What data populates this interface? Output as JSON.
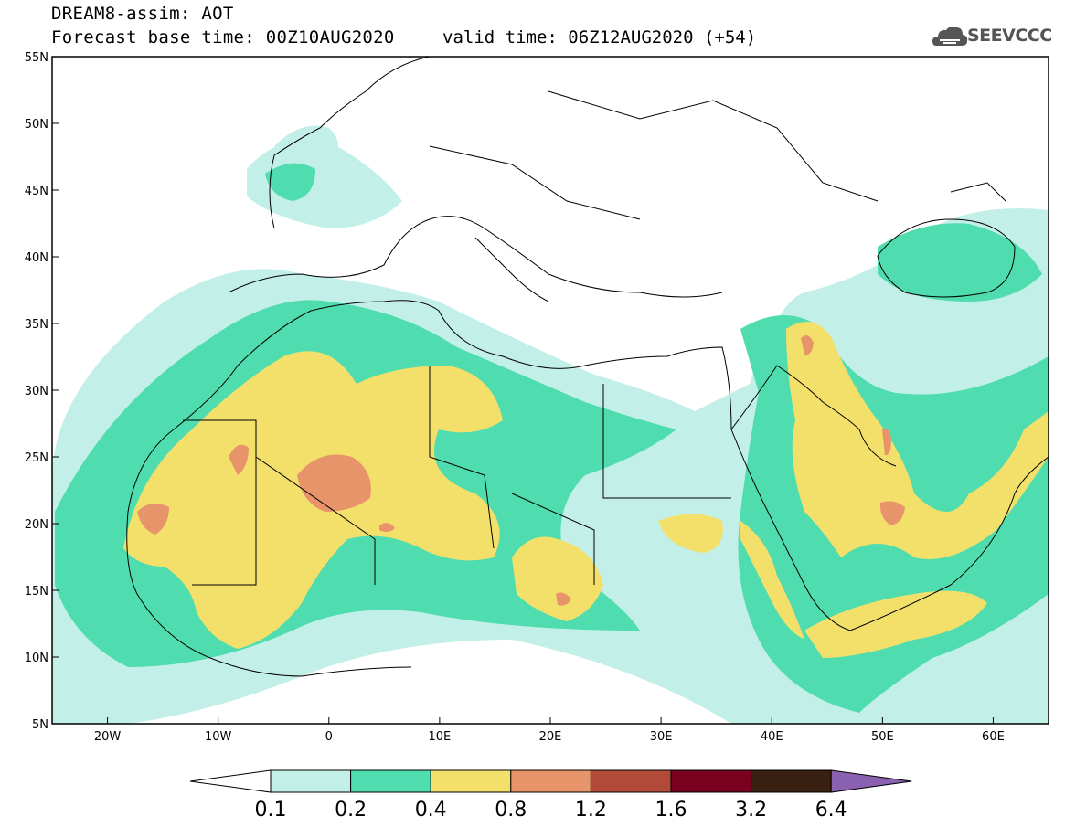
{
  "header": {
    "title": "DREAM8-assim: AOT",
    "base_time": "Forecast base time: 00Z10AUG2020",
    "valid_time": "valid time: 06Z12AUG2020 (+54)"
  },
  "logo": {
    "text": "SEEVCCC"
  },
  "map": {
    "lon_range": [
      -25,
      65
    ],
    "lat_range": [
      5,
      55
    ],
    "x_ticks": [
      "20W",
      "10W",
      "0",
      "10E",
      "20E",
      "30E",
      "40E",
      "50E",
      "60E"
    ],
    "y_ticks": [
      "5N",
      "10N",
      "15N",
      "20N",
      "25N",
      "30N",
      "35N",
      "40N",
      "45N",
      "50N",
      "55N"
    ]
  },
  "colorbar": {
    "labels": [
      "0.1",
      "0.2",
      "0.4",
      "0.8",
      "1.2",
      "1.6",
      "3.2",
      "6.4"
    ],
    "colors": [
      "#ffffff",
      "#c2f0e8",
      "#4fdcae",
      "#f3e06a",
      "#e8946a",
      "#b24a3a",
      "#7a0020",
      "#3a2010",
      "#8a60b0"
    ]
  }
}
